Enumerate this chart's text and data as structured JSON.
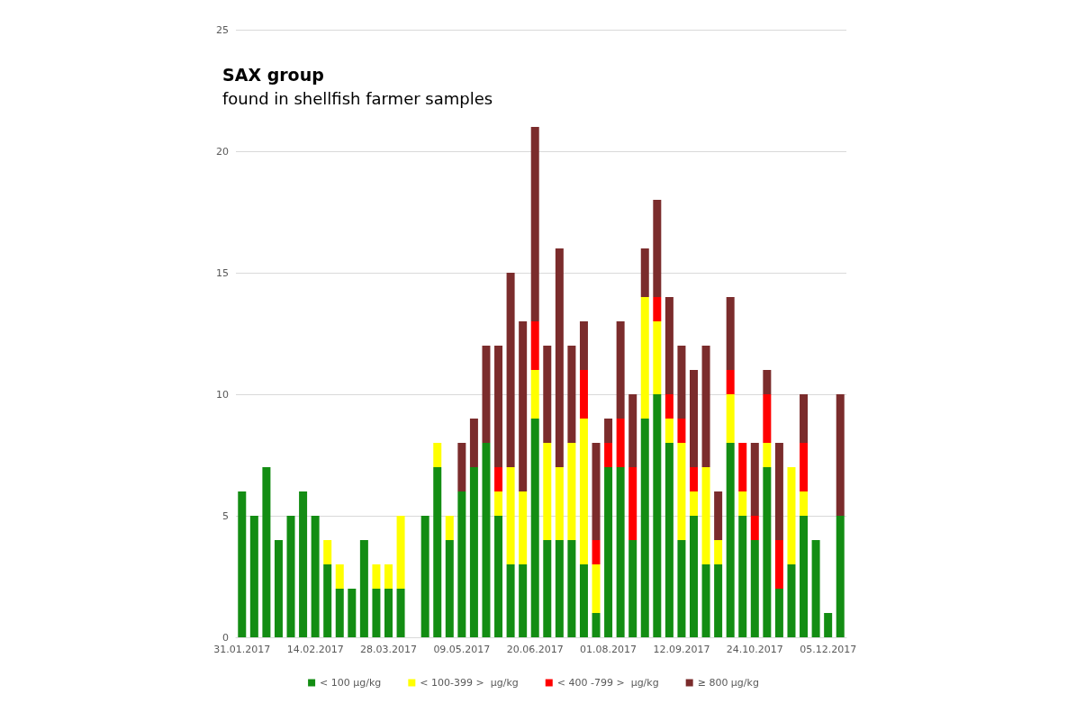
{
  "chart_data": {
    "type": "bar",
    "title": "SAX group",
    "subtitle": "found in shellfish farmer samples",
    "stacked": true,
    "categories": [
      "31.01.2017",
      null,
      null,
      null,
      null,
      null,
      "14.02.2017",
      null,
      null,
      null,
      null,
      null,
      "28.03.2017",
      null,
      null,
      null,
      null,
      null,
      "09.05.2017",
      null,
      null,
      null,
      null,
      null,
      "20.06.2017",
      null,
      null,
      null,
      null,
      null,
      "01.08.2017",
      null,
      null,
      null,
      null,
      null,
      "12.09.2017",
      null,
      null,
      null,
      null,
      null,
      "24.10.2017",
      null,
      null,
      null,
      null,
      null,
      "05.12.2017",
      null
    ],
    "series": [
      {
        "name": "< 100 µg/kg",
        "color": "#138d13",
        "values": [
          6,
          5,
          7,
          4,
          5,
          6,
          5,
          3,
          2,
          2,
          4,
          2,
          2,
          2,
          null,
          5,
          7,
          4,
          6,
          7,
          8,
          5,
          3,
          3,
          9,
          4,
          4,
          4,
          3,
          1,
          7,
          7,
          4,
          9,
          10,
          8,
          4,
          5,
          3,
          3,
          8,
          5,
          4,
          7,
          2,
          3,
          5,
          4,
          1,
          5
        ]
      },
      {
        "name": "< 100-399 >  µg/kg",
        "color": "#ffff00",
        "values": [
          0,
          0,
          0,
          0,
          0,
          0,
          0,
          1,
          1,
          0,
          0,
          1,
          1,
          3,
          null,
          0,
          1,
          1,
          0,
          0,
          0,
          1,
          4,
          3,
          2,
          4,
          3,
          4,
          6,
          2,
          0,
          0,
          0,
          5,
          3,
          1,
          4,
          1,
          4,
          1,
          2,
          1,
          0,
          1,
          0,
          4,
          1,
          0,
          0,
          0
        ]
      },
      {
        "name": "< 400 -799 >  µg/kg",
        "color": "#ff0000",
        "values": [
          0,
          0,
          0,
          0,
          0,
          0,
          0,
          0,
          0,
          0,
          0,
          0,
          0,
          0,
          null,
          0,
          0,
          0,
          0,
          0,
          0,
          1,
          0,
          0,
          2,
          0,
          0,
          0,
          2,
          1,
          1,
          2,
          3,
          0,
          1,
          1,
          1,
          1,
          0,
          0,
          1,
          2,
          1,
          2,
          2,
          0,
          2,
          0,
          0,
          0
        ]
      },
      {
        "name": "≥ 800 µg/kg",
        "color": "#7b2c2c",
        "values": [
          0,
          0,
          0,
          0,
          0,
          0,
          0,
          0,
          0,
          0,
          0,
          0,
          0,
          0,
          null,
          0,
          0,
          0,
          2,
          2,
          4,
          5,
          8,
          7,
          8,
          4,
          9,
          4,
          2,
          4,
          1,
          4,
          3,
          2,
          4,
          4,
          3,
          4,
          5,
          2,
          3,
          0,
          3,
          1,
          4,
          0,
          2,
          0,
          0,
          5
        ]
      }
    ],
    "ylim": [
      0,
      25
    ],
    "yticks": [
      0,
      5,
      10,
      15,
      20,
      25
    ],
    "grid": "y",
    "legend": "bottom"
  }
}
